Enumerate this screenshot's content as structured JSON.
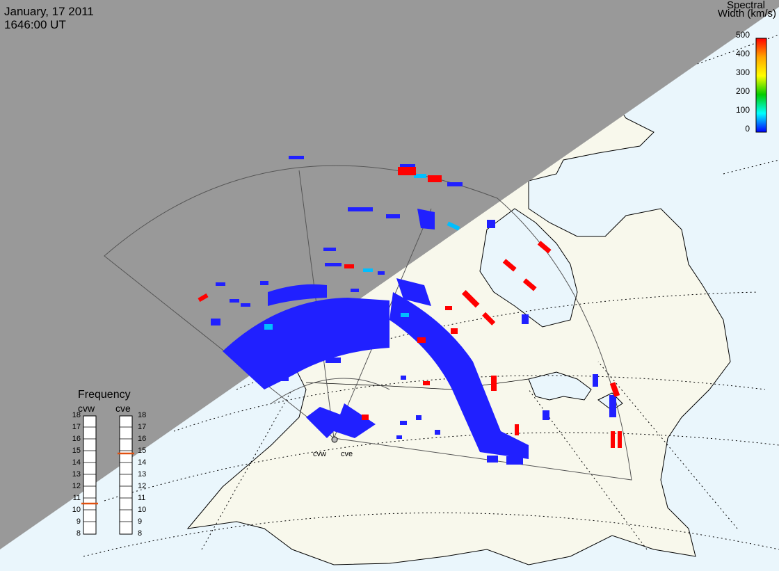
{
  "header": {
    "date": "January, 17 2011",
    "time": "1646:00 UT"
  },
  "colorbar": {
    "title_line1": "Spectral",
    "title_line2": "Width (km/s)",
    "ticks": [
      "500",
      "400",
      "300",
      "200",
      "100",
      "0"
    ],
    "colors": [
      "#ff0000",
      "#ffa500",
      "#ffff00",
      "#00cc00",
      "#00ffff",
      "#0000ff"
    ]
  },
  "frequency_panel": {
    "title": "Frequency",
    "columns": [
      {
        "name": "cvw",
        "marker_value": 11
      },
      {
        "name": "cve",
        "marker_value": 15
      }
    ],
    "ticks": [
      "18",
      "17",
      "16",
      "15",
      "14",
      "13",
      "12",
      "11",
      "10",
      "9",
      "8"
    ],
    "marker_color": "#e05010"
  },
  "radar_sites": [
    {
      "name": "cvw"
    },
    {
      "name": "cve"
    }
  ],
  "map_colors": {
    "night_shade": "#999999",
    "land": "#f8f8ec",
    "ocean": "#eaf6fc",
    "echo_low": "#2020ff",
    "echo_high": "#ff0000",
    "echo_mid": "#00e0ff"
  }
}
